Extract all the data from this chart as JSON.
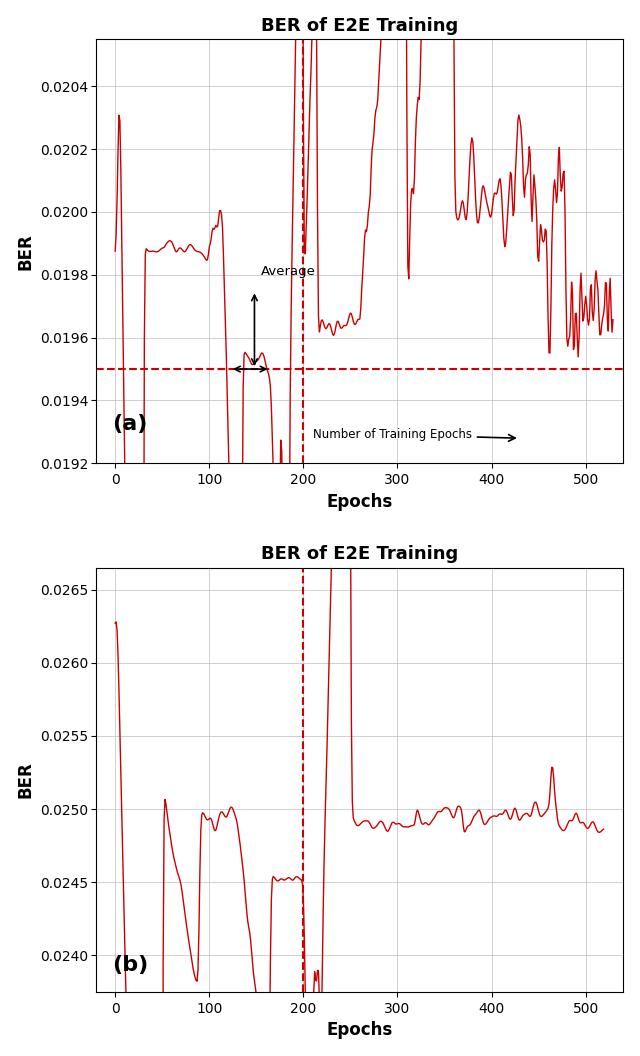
{
  "title": "BER of E2E Training",
  "xlabel": "Epochs",
  "ylabel": "BER",
  "panel_a_label": "(a)",
  "panel_b_label": "(b)",
  "hline_a": 0.0195,
  "vline_x": 200,
  "annotation_average": "Average",
  "annotation_epochs": "Number of Training Epochs",
  "ylim_a": [
    0.0192,
    0.02055
  ],
  "ylim_b": [
    0.02375,
    0.02665
  ],
  "xlim": [
    -20,
    540
  ],
  "yticks_a": [
    0.0192,
    0.0194,
    0.0196,
    0.0198,
    0.02,
    0.0202,
    0.0204
  ],
  "yticks_b": [
    0.024,
    0.0245,
    0.025,
    0.0255,
    0.026,
    0.0265
  ],
  "xticks": [
    0,
    100,
    200,
    300,
    400,
    500
  ],
  "line_color": "#CC0000",
  "dashed_color": "#CC0000",
  "arrow_color": "#000000",
  "grid_color": "#BBBBBB",
  "background_color": "#FFFFFF",
  "fig_width": 6.4,
  "fig_height": 10.56
}
